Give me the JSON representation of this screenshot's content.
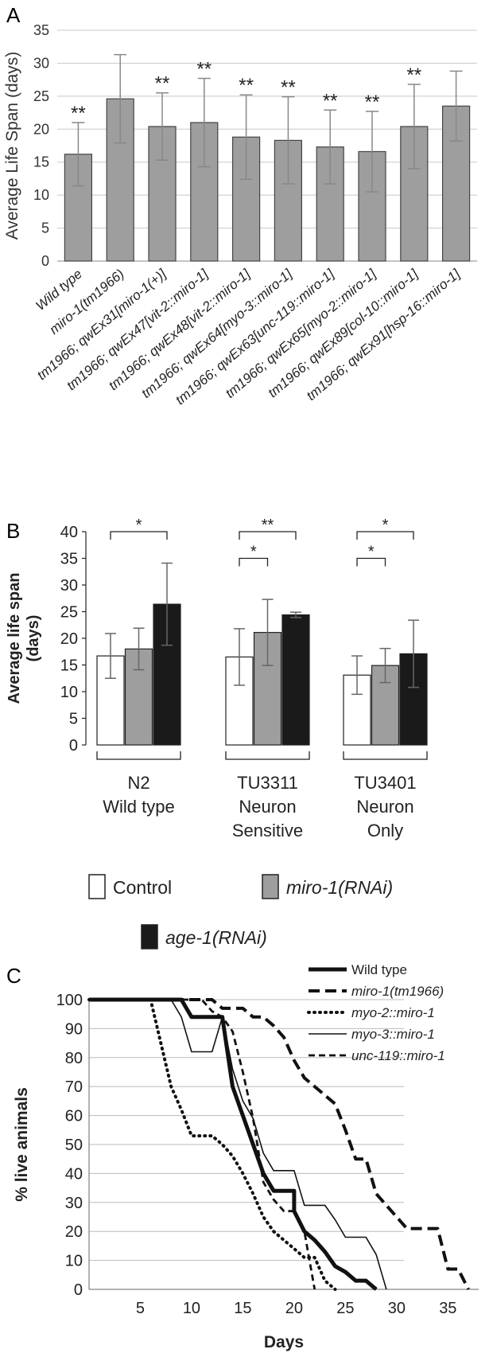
{
  "chart_data": [
    {
      "panel": "A",
      "type": "bar",
      "ylabel": "Average Life Span (days)",
      "ylim": [
        0,
        35
      ],
      "yticks": [
        0,
        5,
        10,
        15,
        20,
        25,
        30,
        35
      ],
      "grid": true,
      "categories": [
        "Wild type",
        "miro-1(tm1966)",
        "tm1966; qwEx31[miro-1(+)]",
        "tm1966; qwEx47[vit-2::miro-1]",
        "tm1966; qwEx48[vit-2::miro-1]",
        "tm1966; qwEx64[myo-3::miro-1]",
        "tm1966; qwEx63[unc-119::miro-1]",
        "tm1966; qwEx65[myo-2::miro-1]",
        "tm1966; qwEx89[col-10::miro-1]",
        "tm1966; qwEx91[hsp-16::miro-1]"
      ],
      "values": [
        16.2,
        24.6,
        20.4,
        21.0,
        18.8,
        18.3,
        17.3,
        16.6,
        20.4,
        23.5
      ],
      "errors": [
        4.8,
        6.7,
        5.1,
        6.7,
        6.4,
        6.6,
        5.6,
        6.1,
        6.4,
        5.3
      ],
      "annotations": [
        "**",
        "",
        "**",
        "**",
        "**",
        "**",
        "**",
        "**",
        "**",
        ""
      ],
      "bar_color": "#9e9e9e"
    },
    {
      "panel": "B",
      "type": "bar",
      "ylabel": "Average life span\n(days)",
      "ylim": [
        0,
        40
      ],
      "yticks": [
        0,
        5,
        10,
        15,
        20,
        25,
        30,
        35,
        40
      ],
      "grid": false,
      "groups": [
        [
          "N2",
          "Wild type"
        ],
        [
          "TU3311",
          "Neuron",
          "Sensitive"
        ],
        [
          "TU3401",
          "Neuron",
          "Only"
        ]
      ],
      "series": [
        {
          "name": "Control",
          "color": "#ffffff",
          "values": [
            16.7,
            16.5,
            13.1
          ],
          "errors": [
            4.2,
            5.3,
            3.6
          ]
        },
        {
          "name": "miro-1(RNAi)",
          "color": "#9e9e9e",
          "values": [
            18.0,
            21.1,
            14.9
          ],
          "errors": [
            3.9,
            6.2,
            3.2
          ]
        },
        {
          "name": "age-1(RNAi)",
          "color": "#1a1a1a",
          "values": [
            26.4,
            24.4,
            17.1
          ],
          "errors": [
            7.7,
            0.5,
            6.3
          ]
        }
      ],
      "significance": [
        {
          "group": 0,
          "from": 0,
          "to": 2,
          "label": "*",
          "at": 40
        },
        {
          "group": 1,
          "from": 0,
          "to": 2,
          "label": "**",
          "at": 40
        },
        {
          "group": 1,
          "from": 0,
          "to": 1,
          "label": "*",
          "at": 35
        },
        {
          "group": 2,
          "from": 0,
          "to": 2,
          "label": "*",
          "at": 40
        },
        {
          "group": 2,
          "from": 0,
          "to": 1,
          "label": "*",
          "at": 35
        }
      ]
    },
    {
      "panel": "C",
      "type": "line",
      "xlabel": "Days",
      "ylabel": "% live animals",
      "xlim": [
        0,
        38
      ],
      "ylim": [
        0,
        100
      ],
      "xticks": [
        5,
        10,
        15,
        20,
        25,
        30,
        35
      ],
      "yticks": [
        0,
        10,
        20,
        30,
        40,
        50,
        60,
        70,
        80,
        90,
        100
      ],
      "grid": true,
      "series": [
        {
          "name": "Wild type",
          "style": "thick",
          "points": [
            [
              0,
              100
            ],
            [
              9,
              100
            ],
            [
              10,
              94
            ],
            [
              13,
              94
            ],
            [
              14,
              70
            ],
            [
              15,
              60
            ],
            [
              16,
              50
            ],
            [
              17,
              40
            ],
            [
              18,
              34
            ],
            [
              20,
              34
            ],
            [
              20,
              27
            ],
            [
              21,
              20
            ],
            [
              22,
              17
            ],
            [
              23,
              13
            ],
            [
              24,
              8
            ],
            [
              25,
              6
            ],
            [
              26,
              3
            ],
            [
              27,
              3
            ],
            [
              28,
              0
            ]
          ]
        },
        {
          "name": "miro-1(tm1966)",
          "style": "dashed",
          "points": [
            [
              0,
              100
            ],
            [
              12,
              100
            ],
            [
              13,
              97
            ],
            [
              15,
              97
            ],
            [
              16,
              94
            ],
            [
              17,
              94
            ],
            [
              18,
              91
            ],
            [
              19,
              87
            ],
            [
              20,
              79
            ],
            [
              21,
              73
            ],
            [
              23,
              67
            ],
            [
              24,
              64
            ],
            [
              25,
              55
            ],
            [
              26,
              45
            ],
            [
              27,
              45
            ],
            [
              28,
              33
            ],
            [
              29,
              29
            ],
            [
              30,
              25
            ],
            [
              31,
              21
            ],
            [
              34,
              21
            ],
            [
              35,
              7
            ],
            [
              36,
              7
            ],
            [
              37,
              0
            ]
          ]
        },
        {
          "name": "myo-2::miro-1",
          "style": "dotted",
          "points": [
            [
              0,
              100
            ],
            [
              6,
              100
            ],
            [
              7,
              85
            ],
            [
              8,
              70
            ],
            [
              9,
              62
            ],
            [
              10,
              53
            ],
            [
              12,
              53
            ],
            [
              13,
              50
            ],
            [
              14,
              46
            ],
            [
              15,
              40
            ],
            [
              16,
              33
            ],
            [
              17,
              25
            ],
            [
              18,
              20
            ],
            [
              19,
              17
            ],
            [
              20,
              14
            ],
            [
              21,
              11
            ],
            [
              22,
              11
            ],
            [
              23,
              3
            ],
            [
              24,
              0
            ]
          ]
        },
        {
          "name": "myo-3::miro-1",
          "style": "thin",
          "points": [
            [
              0,
              100
            ],
            [
              8,
              100
            ],
            [
              9,
              94
            ],
            [
              10,
              82
            ],
            [
              12,
              82
            ],
            [
              13,
              94
            ],
            [
              14,
              76
            ],
            [
              15,
              65
            ],
            [
              16,
              59
            ],
            [
              17,
              47
            ],
            [
              18,
              41
            ],
            [
              20,
              41
            ],
            [
              21,
              29
            ],
            [
              23,
              29
            ],
            [
              24,
              24
            ],
            [
              25,
              18
            ],
            [
              27,
              18
            ],
            [
              28,
              12
            ],
            [
              28.5,
              6
            ],
            [
              29,
              0
            ]
          ]
        },
        {
          "name": "unc-119::miro-1",
          "style": "dashed",
          "points": [
            [
              0,
              100
            ],
            [
              11,
              100
            ],
            [
              12,
              96
            ],
            [
              13,
              94
            ],
            [
              14,
              89
            ],
            [
              15,
              75
            ],
            [
              16,
              59
            ],
            [
              16.5,
              48
            ],
            [
              17,
              37
            ],
            [
              18,
              31
            ],
            [
              19,
              27
            ],
            [
              20,
              27
            ],
            [
              21,
              20
            ],
            [
              21.5,
              10
            ],
            [
              22,
              0
            ]
          ]
        }
      ]
    }
  ],
  "panel_labels": [
    "A",
    "B",
    "C"
  ]
}
